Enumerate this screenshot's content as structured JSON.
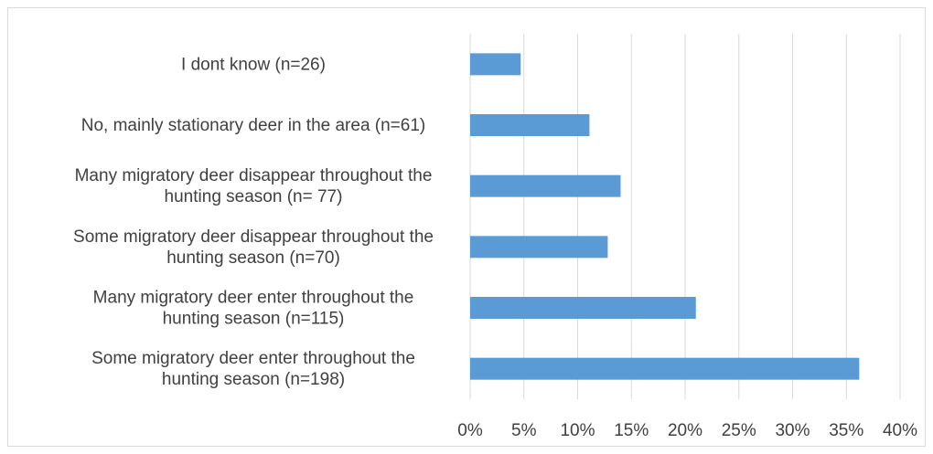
{
  "chart_data": {
    "type": "bar",
    "orientation": "horizontal",
    "title": "",
    "xlabel": "",
    "ylabel": "",
    "categories": [
      [
        "I dont know (n=26)"
      ],
      [
        "No, mainly stationary deer in the area (n=61)"
      ],
      [
        "Many migratory deer disappear throughout the",
        "hunting season (n= 77)"
      ],
      [
        "Some migratory deer disappear throughout the",
        "hunting season (n=70)"
      ],
      [
        "Many migratory deer enter throughout the",
        "hunting season (n=115)"
      ],
      [
        "Some migratory deer enter throughout the",
        "hunting season (n=198)"
      ]
    ],
    "values": [
      4.7,
      11.1,
      14.0,
      12.8,
      21.0,
      36.2
    ],
    "xlim": [
      0,
      40
    ],
    "xticks": [
      0,
      5,
      10,
      15,
      20,
      25,
      30,
      35,
      40
    ],
    "xtick_labels": [
      "0%",
      "5%",
      "10%",
      "15%",
      "20%",
      "25%",
      "30%",
      "35%",
      "40%"
    ],
    "grid": "vertical",
    "legend": "none",
    "bar_color": "#5b9bd5",
    "grid_color": "#d9d9d9",
    "text_color": "#404040"
  }
}
